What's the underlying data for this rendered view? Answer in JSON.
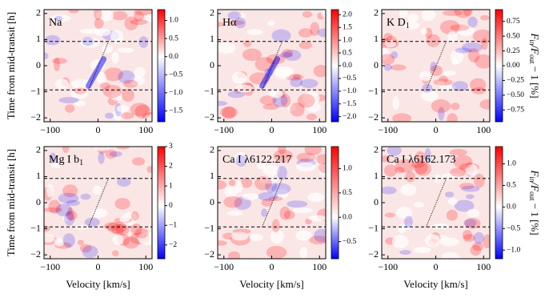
{
  "chart_data": [
    {
      "type": "heatmap",
      "title": [
        "Na",
        ""
      ],
      "ylabel": "Time from mid-transit [h]",
      "xlim": [
        -113,
        113
      ],
      "ylim": [
        -2.15,
        2.15
      ],
      "xticks": [
        {
          "value": -100,
          "label": "−100"
        },
        0,
        100
      ],
      "yticks": [
        {
          "value": -2,
          "label": "−2"
        },
        {
          "value": -1,
          "label": "−1"
        },
        0,
        1,
        2
      ],
      "clim": [
        -1.8,
        1.3
      ],
      "cticks": [
        {
          "value": -1.5,
          "label": "−1.5"
        },
        {
          "value": -1.0,
          "label": "−1.0"
        },
        {
          "value": -0.5,
          "label": "−0.5"
        },
        {
          "value": 0,
          "label": "0.0"
        },
        {
          "value": 0.5,
          "label": "0.5"
        },
        {
          "value": 1.0,
          "label": "1.0"
        }
      ],
      "colormap": [
        "#0000ff",
        "#ffffff",
        "#ff0000"
      ],
      "contact_lines": [
        0.93,
        -0.93
      ],
      "planet_track": {
        "x": [
          -20,
          22
        ],
        "y": [
          -0.93,
          0.93
        ]
      }
    },
    {
      "type": "heatmap",
      "title": [
        "Hα",
        ""
      ],
      "xlim": [
        -113,
        113
      ],
      "ylim": [
        -2.15,
        2.15
      ],
      "xticks": [
        {
          "value": -100,
          "label": "−100"
        },
        0,
        100
      ],
      "yticks": [
        {
          "value": -2,
          "label": "−2"
        },
        {
          "value": -1,
          "label": "−1"
        },
        0,
        1,
        2
      ],
      "clim": [
        -2.2,
        2.2
      ],
      "cticks": [
        {
          "value": -2.0,
          "label": "−2.0"
        },
        {
          "value": -1.5,
          "label": "−1.5"
        },
        {
          "value": -1.0,
          "label": "−1.0"
        },
        {
          "value": -0.5,
          "label": "−0.5"
        },
        {
          "value": 0,
          "label": "0.0"
        },
        {
          "value": 0.5,
          "label": "0.5"
        },
        {
          "value": 1.0,
          "label": "1.0"
        },
        {
          "value": 1.5,
          "label": "1.5"
        },
        {
          "value": 2.0,
          "label": "2.0"
        }
      ],
      "colormap": [
        "#0000ff",
        "#ffffff",
        "#ff0000"
      ],
      "contact_lines": [
        0.93,
        -0.93
      ],
      "planet_track": {
        "x": [
          -20,
          22
        ],
        "y": [
          -0.93,
          0.93
        ]
      }
    },
    {
      "type": "heatmap",
      "title": [
        "K D",
        "1"
      ],
      "colorbar_label": [
        "F",
        "in",
        "/F",
        "out",
        " − 1 [%]"
      ],
      "xlim": [
        -113,
        113
      ],
      "ylim": [
        -2.15,
        2.15
      ],
      "xticks": [
        {
          "value": -100,
          "label": "−100"
        },
        0,
        100
      ],
      "yticks": [
        {
          "value": -2,
          "label": "−2"
        },
        {
          "value": -1,
          "label": "−1"
        },
        0,
        1,
        2
      ],
      "clim": [
        -0.95,
        0.95
      ],
      "cticks": [
        {
          "value": -0.75,
          "label": "−0.75"
        },
        {
          "value": -0.5,
          "label": "−0.50"
        },
        {
          "value": -0.25,
          "label": "−0.25"
        },
        {
          "value": 0,
          "label": "0.00"
        },
        {
          "value": 0.25,
          "label": "0.25"
        },
        {
          "value": 0.5,
          "label": "0.50"
        },
        {
          "value": 0.75,
          "label": "0.75"
        }
      ],
      "colormap": [
        "#0000ff",
        "#ffffff",
        "#ff0000"
      ],
      "contact_lines": [
        0.93,
        -0.93
      ],
      "planet_track": {
        "x": [
          -20,
          22
        ],
        "y": [
          -0.93,
          0.93
        ]
      }
    },
    {
      "type": "heatmap",
      "title": [
        "Mg I b",
        "1"
      ],
      "ylabel": "Time from mid-transit [h]",
      "xlabel": "Velocity [km/s]",
      "xlim": [
        -113,
        113
      ],
      "ylim": [
        -2.15,
        2.15
      ],
      "xticks": [
        {
          "value": -100,
          "label": "−100"
        },
        0,
        100
      ],
      "yticks": [
        {
          "value": -2,
          "label": "−2"
        },
        {
          "value": -1,
          "label": "−1"
        },
        0,
        1,
        2
      ],
      "clim": [
        -2.7,
        3
      ],
      "cticks": [
        {
          "value": -2,
          "label": "−2"
        },
        {
          "value": -1,
          "label": "−1"
        },
        0,
        1,
        2,
        3
      ],
      "colormap": [
        "#0000ff",
        "#ffffff",
        "#ff0000"
      ],
      "contact_lines": [
        0.93,
        -0.93
      ],
      "planet_track": {
        "x": [
          -20,
          22
        ],
        "y": [
          -0.93,
          0.93
        ]
      }
    },
    {
      "type": "heatmap",
      "title": [
        "Ca I λ6122.217",
        ""
      ],
      "xlabel": "Velocity [km/s]",
      "xlim": [
        -113,
        113
      ],
      "ylim": [
        -2.15,
        2.15
      ],
      "xticks": [
        {
          "value": -100,
          "label": "−100"
        },
        0,
        100
      ],
      "yticks": [
        {
          "value": -2,
          "label": "−2"
        },
        {
          "value": -1,
          "label": "−1"
        },
        0,
        1,
        2
      ],
      "clim": [
        -0.85,
        1.45
      ],
      "cticks": [
        {
          "value": -0.5,
          "label": "−0.5"
        },
        {
          "value": 0,
          "label": "0.0"
        },
        {
          "value": 0.5,
          "label": "0.5"
        },
        {
          "value": 1.0,
          "label": "1.0"
        }
      ],
      "colormap": [
        "#0000ff",
        "#ffffff",
        "#ff0000"
      ],
      "contact_lines": [
        0.93,
        -0.93
      ],
      "planet_track": {
        "x": [
          -20,
          22
        ],
        "y": [
          -0.93,
          0.93
        ]
      }
    },
    {
      "type": "heatmap",
      "title": [
        "Ca I λ6162.173",
        ""
      ],
      "xlabel": "Velocity [km/s]",
      "colorbar_label": [
        "F",
        "in",
        "/F",
        "out",
        " − 1 [%]"
      ],
      "xlim": [
        -113,
        113
      ],
      "ylim": [
        -2.15,
        2.15
      ],
      "xticks": [
        {
          "value": -100,
          "label": "−100"
        },
        0,
        100
      ],
      "yticks": [
        {
          "value": -2,
          "label": "−2"
        },
        {
          "value": -1,
          "label": "−1"
        },
        0,
        1,
        2
      ],
      "clim": [
        -1.2,
        1.4
      ],
      "cticks": [
        {
          "value": -1.0,
          "label": "−1.0"
        },
        {
          "value": -0.5,
          "label": "−0.5"
        },
        {
          "value": 0,
          "label": "0.0"
        },
        {
          "value": 0.5,
          "label": "0.5"
        },
        {
          "value": 1.0,
          "label": "1.0"
        }
      ],
      "colormap": [
        "#0000ff",
        "#ffffff",
        "#ff0000"
      ],
      "contact_lines": [
        0.93,
        -0.93
      ],
      "planet_track": {
        "x": [
          -20,
          22
        ],
        "y": [
          -0.93,
          0.93
        ]
      }
    }
  ]
}
